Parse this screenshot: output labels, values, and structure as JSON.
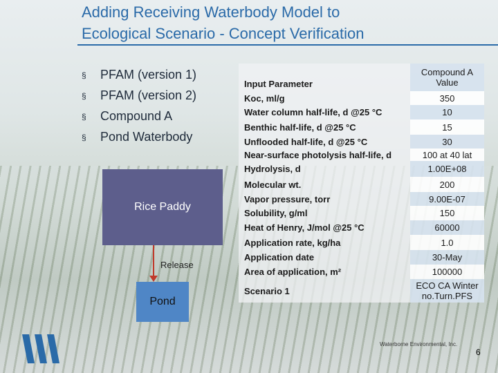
{
  "title": {
    "line1": "Adding Receiving Waterbody Model to",
    "line2": "Ecological Scenario - Concept Verification"
  },
  "bullets": [
    "PFAM (version 1)",
    "PFAM (version 2)",
    "Compound A",
    "Pond Waterbody"
  ],
  "diagram": {
    "source": "Rice Paddy",
    "arrow": "Release",
    "target": "Pond"
  },
  "table": {
    "header": [
      "Input Parameter",
      "Compound A Value"
    ],
    "rows": [
      [
        "Koc, ml/g",
        "350"
      ],
      [
        "Water column half-life, d @25 °C",
        "10"
      ],
      [
        "Benthic half-life, d @25 °C",
        "15"
      ],
      [
        "Unflooded half-life, d @25 °C",
        "30"
      ],
      [
        "Near-surface photolysis half-life, d",
        "100 at 40 lat"
      ],
      [
        "Hydrolysis, d",
        "1.00E+08"
      ],
      [
        "Molecular wt.",
        "200"
      ],
      [
        "Vapor pressure, torr",
        "9.00E-07"
      ],
      [
        "Solubility, g/ml",
        "150"
      ],
      [
        "Heat of Henry, J/mol @25 °C",
        "60000"
      ],
      [
        "Application rate, kg/ha",
        "1.0"
      ],
      [
        "Application date",
        "30-May"
      ],
      [
        "Area of application, m²",
        "100000"
      ],
      [
        "Scenario 1",
        "ECO CA Winter no.Turn.PFS"
      ]
    ]
  },
  "footer": {
    "company": "Waterborne Environmental, Inc.",
    "page": "6"
  }
}
